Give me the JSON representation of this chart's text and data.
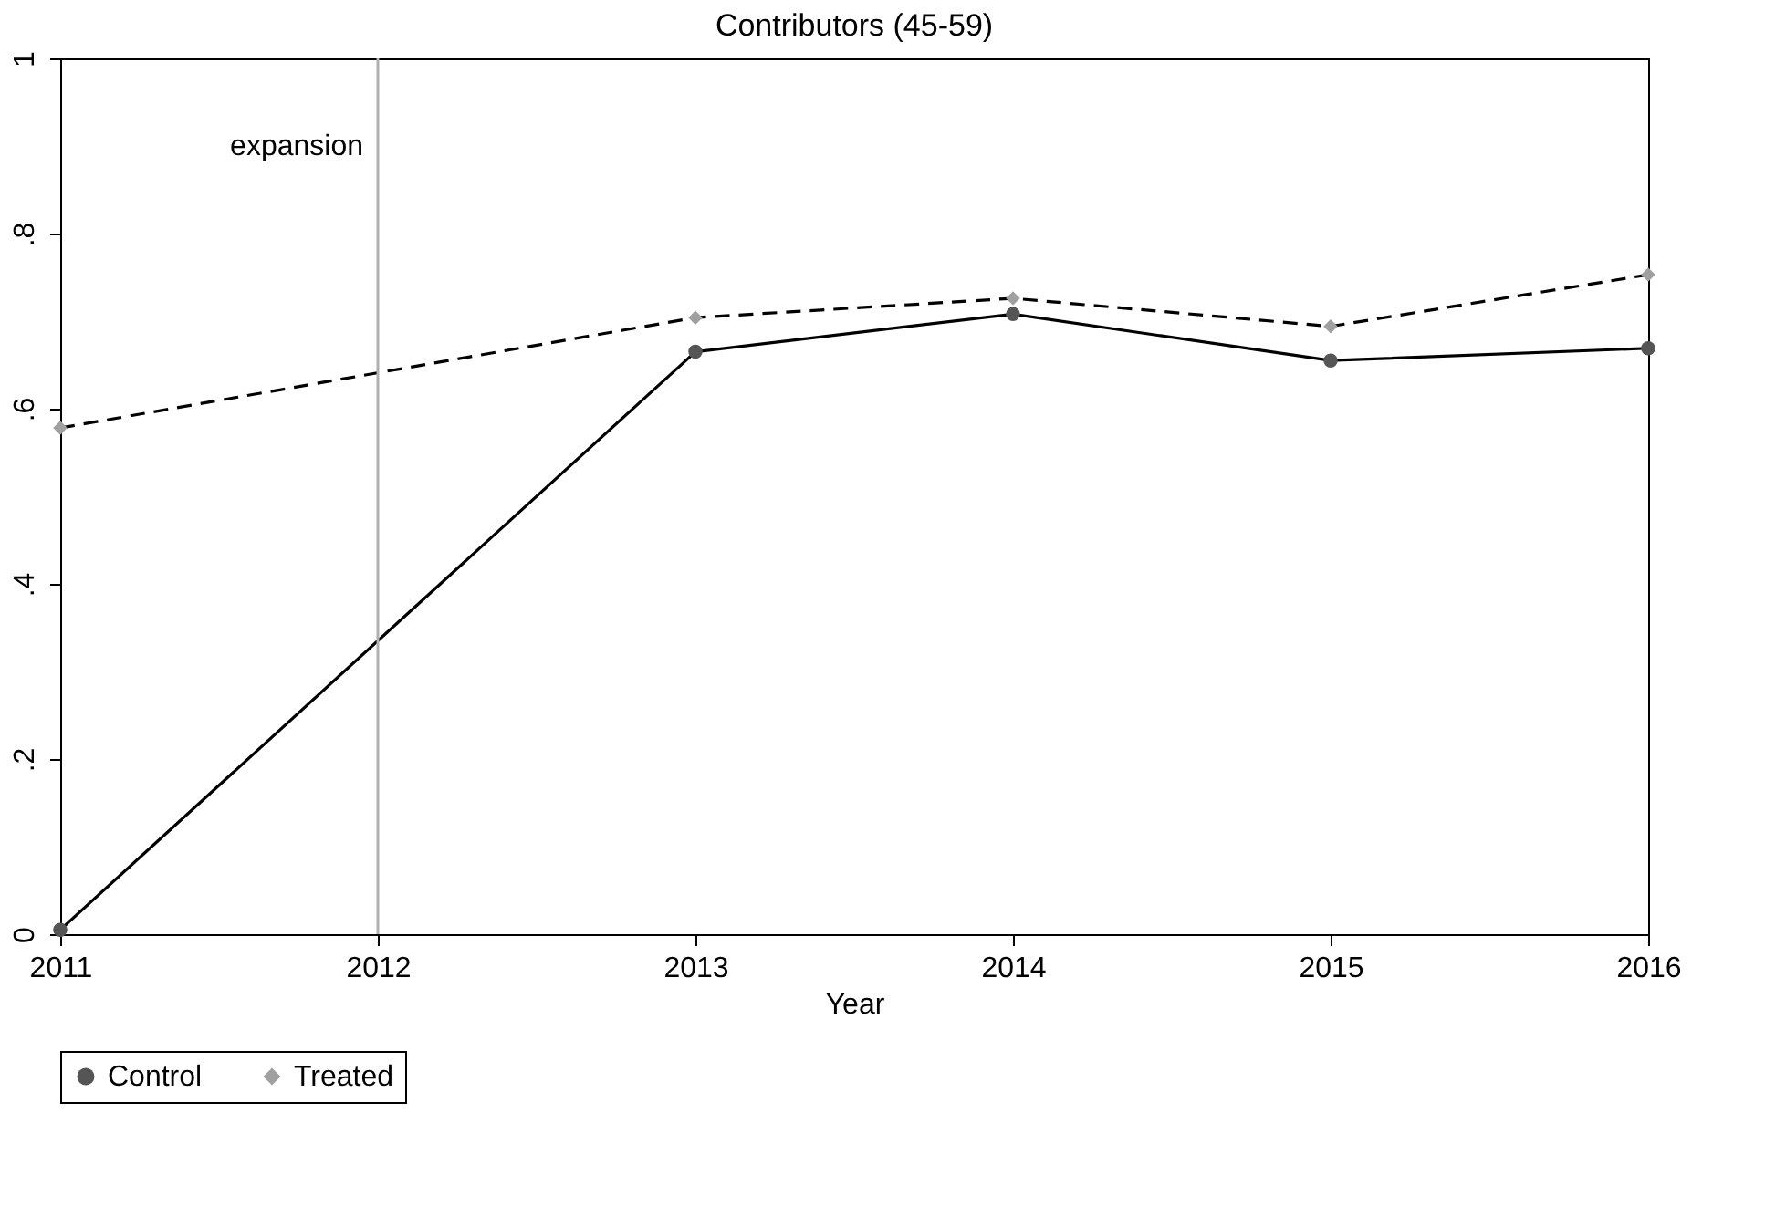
{
  "chart_data": {
    "type": "line",
    "title": "Contributors (45-59)",
    "xlabel": "Year",
    "x": [
      2011,
      2013,
      2014,
      2015,
      2016
    ],
    "series": [
      {
        "name": "Control",
        "color": "#555555",
        "marker": "circle",
        "line_style": "solid",
        "values": [
          0.005,
          0.665,
          0.708,
          0.655,
          0.669
        ]
      },
      {
        "name": "Treated",
        "color": "#a0a0a0",
        "marker": "diamond",
        "line_style": "dashed",
        "values": [
          0.578,
          0.704,
          0.726,
          0.694,
          0.753
        ]
      }
    ],
    "xlim": [
      2011,
      2016
    ],
    "xticks": [
      2011,
      2012,
      2013,
      2014,
      2015,
      2016
    ],
    "ylim": [
      0,
      1
    ],
    "yticks": [
      {
        "value": 0,
        "label": "0"
      },
      {
        "value": 0.2,
        "label": ".2"
      },
      {
        "value": 0.4,
        "label": ".4"
      },
      {
        "value": 0.6,
        "label": ".6"
      },
      {
        "value": 0.8,
        "label": ".8"
      },
      {
        "value": 1,
        "label": "1"
      }
    ],
    "ref_lines": [
      {
        "axis": "x",
        "value": 2012,
        "label": "expansion",
        "color": "#b0b0b0"
      }
    ],
    "grid": false,
    "legend": "bottom"
  }
}
